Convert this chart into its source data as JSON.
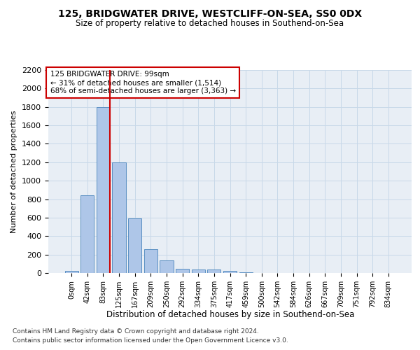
{
  "title1": "125, BRIDGWATER DRIVE, WESTCLIFF-ON-SEA, SS0 0DX",
  "title2": "Size of property relative to detached houses in Southend-on-Sea",
  "xlabel": "Distribution of detached houses by size in Southend-on-Sea",
  "ylabel": "Number of detached properties",
  "footnote1": "Contains HM Land Registry data © Crown copyright and database right 2024.",
  "footnote2": "Contains public sector information licensed under the Open Government Licence v3.0.",
  "annotation_line1": "125 BRIDGWATER DRIVE: 99sqm",
  "annotation_line2": "← 31% of detached houses are smaller (1,514)",
  "annotation_line3": "68% of semi-detached houses are larger (3,363) →",
  "bar_labels": [
    "0sqm",
    "42sqm",
    "83sqm",
    "125sqm",
    "167sqm",
    "209sqm",
    "250sqm",
    "292sqm",
    "334sqm",
    "375sqm",
    "417sqm",
    "459sqm",
    "500sqm",
    "542sqm",
    "584sqm",
    "626sqm",
    "667sqm",
    "709sqm",
    "751sqm",
    "792sqm",
    "834sqm"
  ],
  "bar_values": [
    25,
    845,
    1800,
    1200,
    595,
    255,
    135,
    45,
    40,
    35,
    20,
    10,
    0,
    0,
    0,
    0,
    0,
    0,
    0,
    0,
    0
  ],
  "bar_color": "#aec6e8",
  "bar_edgecolor": "#5a8fc2",
  "grid_color": "#c8d8e8",
  "background_color": "#e8eef5",
  "redline_color": "#cc0000",
  "annotation_box_edgecolor": "#cc0000",
  "ylim": [
    0,
    2200
  ],
  "yticks": [
    0,
    200,
    400,
    600,
    800,
    1000,
    1200,
    1400,
    1600,
    1800,
    2000,
    2200
  ]
}
